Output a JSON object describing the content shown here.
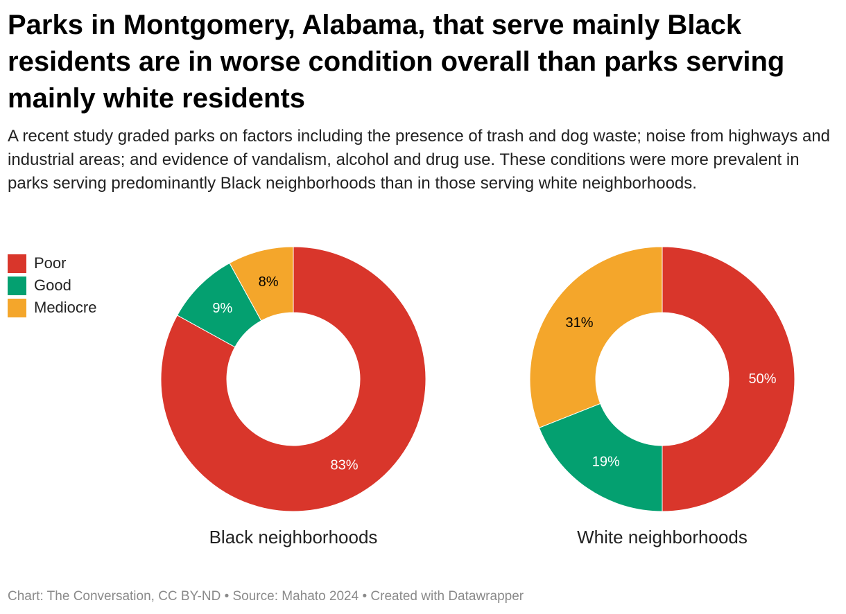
{
  "title": "Parks in Montgomery, Alabama, that serve mainly Black residents are in worse condition overall than parks serving mainly white residents",
  "subtitle": "A recent study graded parks on factors including the presence of trash and dog waste; noise from highways and industrial areas; and evidence of vandalism, alcohol and drug use. These conditions were more prevalent in parks serving predominantly Black neighborhoods than in those serving white neighborhoods.",
  "legend": [
    {
      "label": "Poor",
      "color": "#d9362b"
    },
    {
      "label": "Good",
      "color": "#04a070"
    },
    {
      "label": "Mediocre",
      "color": "#f4a62b"
    }
  ],
  "footer": "Chart: The Conversation, CC BY-ND • Source: Mahato 2024 • Created with Datawrapper",
  "chart_data": [
    {
      "type": "pie",
      "label": "Black neighborhoods",
      "categories": [
        "Poor",
        "Good",
        "Mediocre"
      ],
      "values": [
        83,
        9,
        8
      ],
      "data_labels": [
        "83%",
        "9%",
        "8%"
      ],
      "colors": [
        "#d9362b",
        "#04a070",
        "#f4a62b"
      ],
      "label_colors": [
        "#ffffff",
        "#ffffff",
        "#000000"
      ],
      "legend": "top-left"
    },
    {
      "type": "pie",
      "label": "White neighborhoods",
      "categories": [
        "Poor",
        "Good",
        "Mediocre"
      ],
      "values": [
        50,
        19,
        31
      ],
      "data_labels": [
        "50%",
        "19%",
        "31%"
      ],
      "colors": [
        "#d9362b",
        "#04a070",
        "#f4a62b"
      ],
      "label_colors": [
        "#ffffff",
        "#ffffff",
        "#000000"
      ],
      "legend": "top-left"
    }
  ]
}
